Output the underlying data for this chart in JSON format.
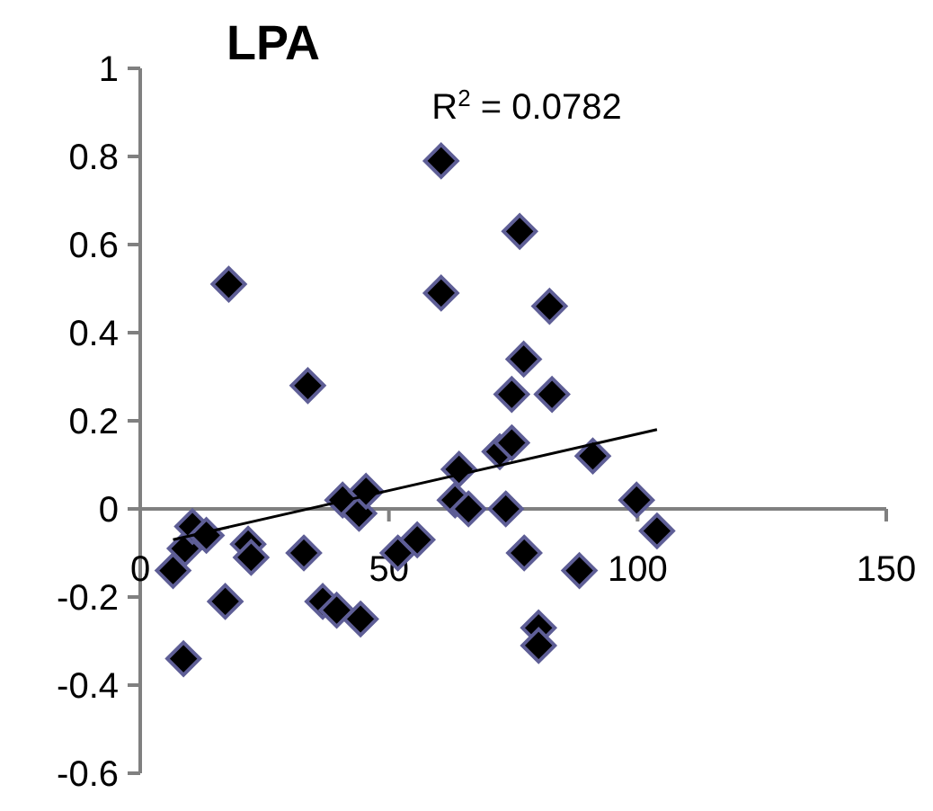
{
  "chart_data": {
    "type": "scatter",
    "title": "LPA",
    "annotations": [
      "R$^{2}$ = 0.0782"
    ],
    "xlim": [
      0,
      150
    ],
    "xticks": [
      0,
      50,
      100,
      150
    ],
    "ylim": [
      -0.6,
      1
    ],
    "yticks": [
      1,
      0.8,
      0.6,
      0.4,
      0.2,
      0,
      -0.2,
      -0.4,
      -0.6
    ],
    "grid": false,
    "marker": "diamond",
    "series": [
      {
        "color": "#000000",
        "x": [
          6.6,
          8.7,
          9.0,
          10.5,
          13.3,
          17.8,
          17.1,
          21.7,
          22.3,
          32.9,
          33.7,
          36.7,
          39.5,
          40.7,
          44.3,
          44.0,
          45.4,
          51.8,
          55.7,
          60.5,
          60.5,
          64.1,
          63.3,
          66.0,
          72.3,
          74.7,
          74.7,
          76.3,
          77.1,
          73.5,
          77.2,
          80.1,
          80.1,
          82.3,
          82.8,
          88.3,
          91.0,
          99.8,
          103.9
        ],
        "values": [
          -0.14,
          -0.34,
          -0.09,
          -0.04,
          -0.06,
          0.51,
          -0.21,
          -0.08,
          -0.11,
          -0.1,
          0.28,
          -0.21,
          -0.23,
          0.02,
          -0.25,
          -0.01,
          0.04,
          -0.1,
          -0.07,
          0.79,
          0.49,
          0.09,
          0.02,
          0.0,
          0.13,
          0.15,
          0.26,
          0.63,
          0.34,
          0.0,
          -0.1,
          -0.27,
          -0.31,
          0.46,
          0.26,
          -0.14,
          0.12,
          0.02,
          -0.05
        ]
      },
      {
        "type": "line",
        "color": "#000000",
        "marker": "none",
        "x": [
          6.6,
          103.9
        ],
        "values": [
          -0.07,
          0.18
        ]
      }
    ]
  }
}
